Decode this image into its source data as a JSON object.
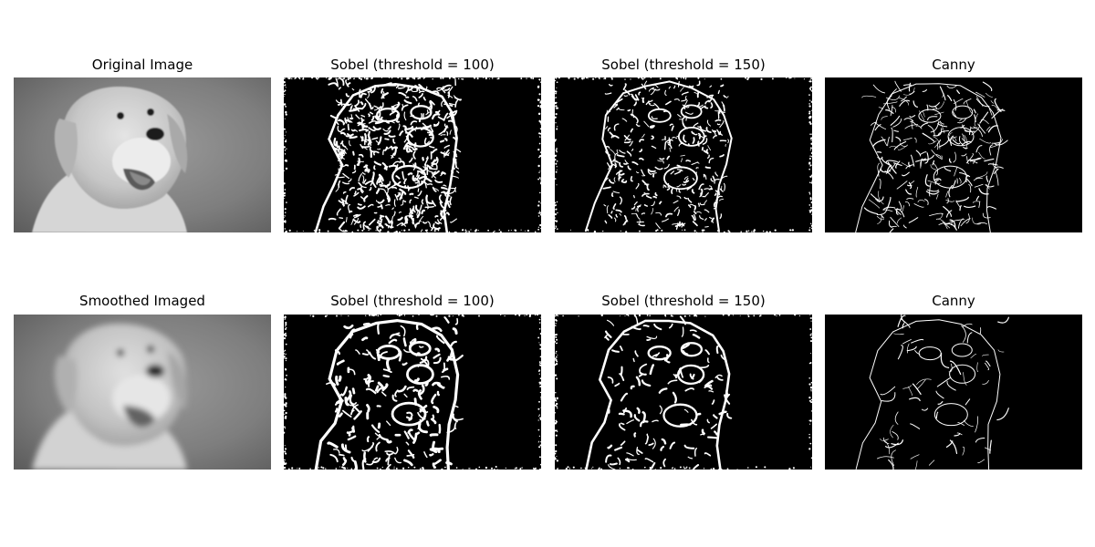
{
  "panels": [
    {
      "title": "Original Image",
      "kind": "photo",
      "blurred": false
    },
    {
      "title": "Sobel (threshold = 100)",
      "kind": "sobel",
      "threshold": 100,
      "source": "original"
    },
    {
      "title": "Sobel (threshold = 150)",
      "kind": "sobel",
      "threshold": 150,
      "source": "original"
    },
    {
      "title": "Canny",
      "kind": "canny",
      "source": "original"
    },
    {
      "title": "Smoothed Imaged",
      "kind": "photo",
      "blurred": true
    },
    {
      "title": "Sobel (threshold = 100)",
      "kind": "sobel",
      "threshold": 100,
      "source": "smoothed"
    },
    {
      "title": "Sobel (threshold = 150)",
      "kind": "sobel",
      "threshold": 150,
      "source": "smoothed"
    },
    {
      "title": "Canny",
      "kind": "canny",
      "source": "smoothed"
    }
  ],
  "colors": {
    "background": "#ffffff",
    "edge_background": "#000000",
    "edge_line": "#ffffff"
  }
}
